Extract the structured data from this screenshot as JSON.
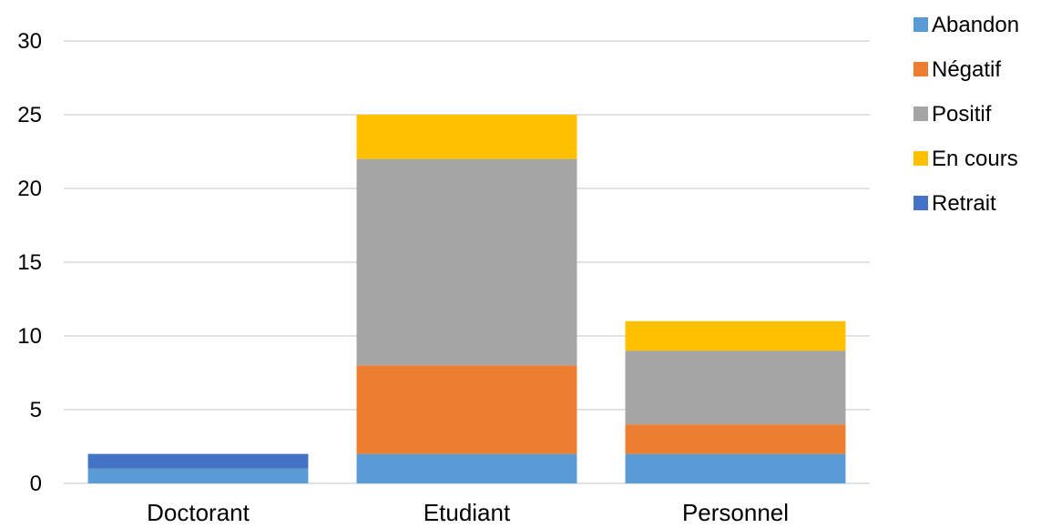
{
  "chart_data": {
    "type": "bar",
    "stacked": true,
    "categories": [
      "Doctorant",
      "Etudiant",
      "Personnel"
    ],
    "series": [
      {
        "name": "Abandon",
        "color": "#5b9bd5",
        "values": [
          1,
          2,
          2
        ]
      },
      {
        "name": "Négatif",
        "color": "#ed7d31",
        "values": [
          0,
          6,
          2
        ]
      },
      {
        "name": "Positif",
        "color": "#a5a5a5",
        "values": [
          0,
          14,
          5
        ]
      },
      {
        "name": "En cours",
        "color": "#ffc000",
        "values": [
          0,
          3,
          2
        ]
      },
      {
        "name": "Retrait",
        "color": "#4472c4",
        "values": [
          1,
          0,
          0
        ]
      }
    ],
    "ylim": [
      0,
      30
    ],
    "yticks": [
      0,
      5,
      10,
      15,
      20,
      25,
      30
    ],
    "grid": true,
    "legend": "top-right"
  }
}
